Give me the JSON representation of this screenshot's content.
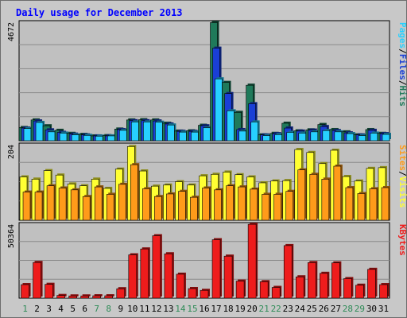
{
  "title": "Daily usage for December 2013",
  "colors": {
    "background": "#c8c8c8",
    "plot_background": "#c0c0c0",
    "title": "#0000ff",
    "weekday_label": "#000000",
    "weekend_label": "#2e8b57",
    "hits": "#1f7a5a",
    "files": "#1a3fd6",
    "pages": "#27d0ff",
    "visits": "#ffff33",
    "sites": "#ff9b1a",
    "kbytes": "#ee1c1c"
  },
  "legend": {
    "top": [
      "Pages",
      "/",
      "Files",
      "/",
      "Hits"
    ],
    "middle": [
      "Sites",
      "/",
      "Visits"
    ],
    "bottom": [
      "KBytes"
    ]
  },
  "chart_data": [
    {
      "type": "bar",
      "name": "hits-files-pages",
      "axis_max_label": "4672",
      "ylim": [
        0,
        4672
      ],
      "categories": [
        "1",
        "2",
        "3",
        "4",
        "5",
        "6",
        "7",
        "8",
        "9",
        "10",
        "11",
        "12",
        "13",
        "14",
        "15",
        "16",
        "17",
        "18",
        "19",
        "20",
        "21",
        "22",
        "23",
        "24",
        "25",
        "26",
        "27",
        "28",
        "29",
        "30",
        "31"
      ],
      "weekend_days": [
        1,
        7,
        8,
        14,
        15,
        21,
        22,
        28,
        29
      ],
      "series": [
        {
          "name": "Hits",
          "values": [
            520,
            820,
            590,
            410,
            290,
            250,
            190,
            200,
            460,
            820,
            830,
            820,
            690,
            380,
            390,
            610,
            4660,
            2300,
            1120,
            2190,
            230,
            290,
            690,
            390,
            430,
            640,
            440,
            350,
            230,
            440,
            290
          ]
        },
        {
          "name": "Files",
          "values": [
            500,
            780,
            430,
            330,
            260,
            230,
            190,
            190,
            440,
            790,
            790,
            780,
            660,
            370,
            370,
            590,
            3650,
            1860,
            440,
            1460,
            230,
            280,
            500,
            380,
            420,
            560,
            400,
            310,
            230,
            410,
            280
          ]
        },
        {
          "name": "Pages",
          "values": [
            480,
            720,
            350,
            300,
            230,
            210,
            180,
            190,
            410,
            740,
            740,
            730,
            620,
            340,
            340,
            510,
            2440,
            1180,
            380,
            740,
            200,
            240,
            330,
            300,
            350,
            400,
            350,
            280,
            200,
            300,
            250
          ]
        }
      ]
    },
    {
      "type": "bar",
      "name": "visits-sites",
      "axis_max_label": "204",
      "ylim": [
        0,
        204
      ],
      "categories": [
        "1",
        "2",
        "3",
        "4",
        "5",
        "6",
        "7",
        "8",
        "9",
        "10",
        "11",
        "12",
        "13",
        "14",
        "15",
        "16",
        "17",
        "18",
        "19",
        "20",
        "21",
        "22",
        "23",
        "24",
        "25",
        "26",
        "27",
        "28",
        "29",
        "30",
        "31"
      ],
      "weekend_days": [
        1,
        7,
        8,
        14,
        15,
        21,
        22,
        28,
        29
      ],
      "series": [
        {
          "name": "Visits",
          "values": [
            117,
            111,
            134,
            122,
            98,
            93,
            111,
            86,
            138,
            199,
            133,
            92,
            95,
            104,
            95,
            120,
            124,
            130,
            123,
            117,
            101,
            106,
            107,
            191,
            183,
            153,
            189,
            118,
            106,
            140,
            142
          ]
        },
        {
          "name": "Sites",
          "values": [
            76,
            76,
            93,
            87,
            82,
            64,
            90,
            70,
            97,
            150,
            85,
            64,
            71,
            78,
            62,
            87,
            82,
            93,
            90,
            84,
            70,
            70,
            78,
            136,
            124,
            111,
            146,
            88,
            72,
            85,
            88
          ]
        }
      ]
    },
    {
      "type": "bar",
      "name": "kbytes",
      "axis_max_label": "50364",
      "ylim": [
        0,
        50364
      ],
      "categories": [
        "1",
        "2",
        "3",
        "4",
        "5",
        "6",
        "7",
        "8",
        "9",
        "10",
        "11",
        "12",
        "13",
        "14",
        "15",
        "16",
        "17",
        "18",
        "19",
        "20",
        "21",
        "22",
        "23",
        "24",
        "25",
        "26",
        "27",
        "28",
        "29",
        "30",
        "31"
      ],
      "weekend_days": [
        1,
        7,
        8,
        14,
        15,
        21,
        22,
        28,
        29
      ],
      "series": [
        {
          "name": "KBytes",
          "values": [
            9200,
            24300,
            9400,
            1800,
            1500,
            1500,
            1600,
            1600,
            6400,
            29500,
            33500,
            42500,
            30200,
            16300,
            6500,
            5300,
            39800,
            28600,
            11600,
            50300,
            11200,
            7300,
            35800,
            14500,
            24200,
            16900,
            24000,
            13300,
            8800,
            19600,
            9200
          ]
        }
      ]
    }
  ]
}
